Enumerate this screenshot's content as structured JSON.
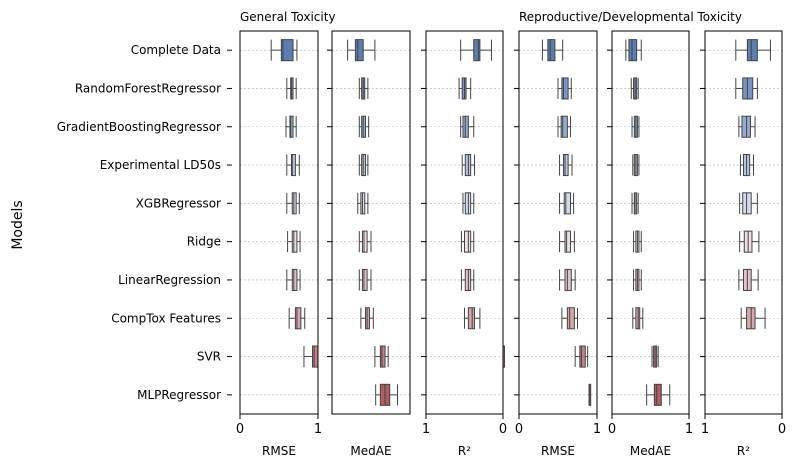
{
  "figure": {
    "ylabel": "Models",
    "group_titles": [
      "General Toxicity",
      "Reproductive/Developmental Toxicity"
    ]
  },
  "chart_data": {
    "type": "box",
    "ylabel": "Models",
    "categories": [
      "Complete Data",
      "RandomForestRegressor",
      "GradientBoostingRegressor",
      "Experimental LD50s",
      "XGBRegressor",
      "Ridge",
      "LinearRegression",
      "CompTox Features",
      "SVR",
      "MLPRegressor"
    ],
    "box_colors": [
      "#5b7db0",
      "#7a93c2",
      "#97abd1",
      "#b4c3df",
      "#d2dcee",
      "#eedfe3",
      "#e3c3ca",
      "#d6a6ae",
      "#c48088",
      "#b05c60"
    ],
    "panels": [
      {
        "group": "General Toxicity",
        "xlabel": "RMSE",
        "xlim": [
          0,
          1
        ],
        "ticks": [
          "0",
          "1"
        ],
        "inverted": false,
        "boxes": [
          [
            0.4,
            0.53,
            0.55,
            0.68,
            0.73
          ],
          [
            0.6,
            0.65,
            0.66,
            0.68,
            0.72
          ],
          [
            0.59,
            0.64,
            0.65,
            0.68,
            0.72
          ],
          [
            0.6,
            0.66,
            0.67,
            0.71,
            0.76
          ],
          [
            0.6,
            0.67,
            0.69,
            0.72,
            0.76
          ],
          [
            0.61,
            0.67,
            0.69,
            0.73,
            0.77
          ],
          [
            0.6,
            0.67,
            0.69,
            0.73,
            0.77
          ],
          [
            0.63,
            0.71,
            0.73,
            0.78,
            0.83
          ],
          [
            0.82,
            0.93,
            0.95,
            1.0,
            1.0
          ],
          null
        ]
      },
      {
        "group": "General Toxicity",
        "xlabel": "MedAE",
        "xlim": [
          0,
          1
        ],
        "ticks": [],
        "inverted": false,
        "boxes": [
          [
            0.2,
            0.3,
            0.33,
            0.4,
            0.55
          ],
          [
            0.35,
            0.38,
            0.4,
            0.42,
            0.46
          ],
          [
            0.35,
            0.38,
            0.4,
            0.43,
            0.47
          ],
          [
            0.35,
            0.38,
            0.4,
            0.43,
            0.46
          ],
          [
            0.33,
            0.37,
            0.39,
            0.42,
            0.46
          ],
          [
            0.35,
            0.39,
            0.41,
            0.45,
            0.5
          ],
          [
            0.35,
            0.39,
            0.41,
            0.45,
            0.5
          ],
          [
            0.37,
            0.43,
            0.45,
            0.48,
            0.53
          ],
          [
            0.55,
            0.62,
            0.64,
            0.68,
            0.72
          ],
          [
            0.56,
            0.62,
            0.68,
            0.74,
            0.84
          ]
        ]
      },
      {
        "group": "General Toxicity",
        "xlabel": "R²",
        "xlim": [
          1,
          0
        ],
        "ticks": [
          "1",
          "0"
        ],
        "inverted": true,
        "boxes": [
          [
            0.15,
            0.3,
            0.32,
            0.38,
            0.55
          ],
          [
            0.42,
            0.48,
            0.5,
            0.53,
            0.57
          ],
          [
            0.38,
            0.45,
            0.49,
            0.52,
            0.55
          ],
          [
            0.37,
            0.42,
            0.45,
            0.49,
            0.53
          ],
          [
            0.38,
            0.42,
            0.45,
            0.49,
            0.52
          ],
          [
            0.38,
            0.42,
            0.45,
            0.5,
            0.54
          ],
          [
            0.38,
            0.42,
            0.45,
            0.49,
            0.54
          ],
          [
            0.3,
            0.37,
            0.4,
            0.45,
            0.5
          ],
          [
            0.0,
            0.0,
            0.0,
            0.0,
            0.0
          ],
          null
        ]
      },
      {
        "group": "Reproductive/Developmental Toxicity",
        "xlabel": "RMSE",
        "xlim": [
          0,
          1
        ],
        "ticks": [
          "0",
          "1"
        ],
        "inverted": false,
        "boxes": [
          [
            0.3,
            0.37,
            0.4,
            0.46,
            0.56
          ],
          [
            0.5,
            0.55,
            0.57,
            0.63,
            0.67
          ],
          [
            0.5,
            0.54,
            0.56,
            0.62,
            0.66
          ],
          [
            0.52,
            0.57,
            0.59,
            0.63,
            0.68
          ],
          [
            0.52,
            0.58,
            0.6,
            0.66,
            0.7
          ],
          [
            0.52,
            0.59,
            0.61,
            0.66,
            0.71
          ],
          [
            0.52,
            0.59,
            0.62,
            0.67,
            0.72
          ],
          [
            0.55,
            0.62,
            0.65,
            0.71,
            0.75
          ],
          [
            0.72,
            0.78,
            0.8,
            0.85,
            0.88
          ],
          [
            0.9,
            0.9,
            0.9,
            0.9,
            0.9
          ]
        ]
      },
      {
        "group": "Reproductive/Developmental Toxicity",
        "xlabel": "MedAE",
        "xlim": [
          0,
          1
        ],
        "ticks": [
          "0",
          "1"
        ],
        "inverted": false,
        "boxes": [
          [
            0.18,
            0.22,
            0.26,
            0.32,
            0.38
          ],
          [
            0.25,
            0.28,
            0.3,
            0.32,
            0.34
          ],
          [
            0.26,
            0.29,
            0.31,
            0.33,
            0.35
          ],
          [
            0.27,
            0.29,
            0.31,
            0.33,
            0.35
          ],
          [
            0.26,
            0.29,
            0.3,
            0.32,
            0.34
          ],
          [
            0.28,
            0.31,
            0.33,
            0.35,
            0.38
          ],
          [
            0.28,
            0.31,
            0.33,
            0.35,
            0.38
          ],
          [
            0.27,
            0.31,
            0.34,
            0.36,
            0.4
          ],
          [
            0.52,
            0.54,
            0.56,
            0.58,
            0.6
          ],
          [
            0.45,
            0.55,
            0.58,
            0.64,
            0.75
          ]
        ]
      },
      {
        "group": "Reproductive/Developmental Toxicity",
        "xlabel": "R²",
        "xlim": [
          1,
          0
        ],
        "ticks": [
          "1",
          "0"
        ],
        "inverted": true,
        "boxes": [
          [
            0.15,
            0.32,
            0.4,
            0.45,
            0.6
          ],
          [
            0.32,
            0.38,
            0.45,
            0.51,
            0.6
          ],
          [
            0.35,
            0.41,
            0.46,
            0.52,
            0.56
          ],
          [
            0.37,
            0.42,
            0.46,
            0.5,
            0.54
          ],
          [
            0.32,
            0.4,
            0.46,
            0.51,
            0.55
          ],
          [
            0.3,
            0.39,
            0.44,
            0.49,
            0.55
          ],
          [
            0.31,
            0.4,
            0.45,
            0.5,
            0.56
          ],
          [
            0.22,
            0.35,
            0.4,
            0.46,
            0.53
          ],
          null,
          null
        ]
      }
    ]
  }
}
